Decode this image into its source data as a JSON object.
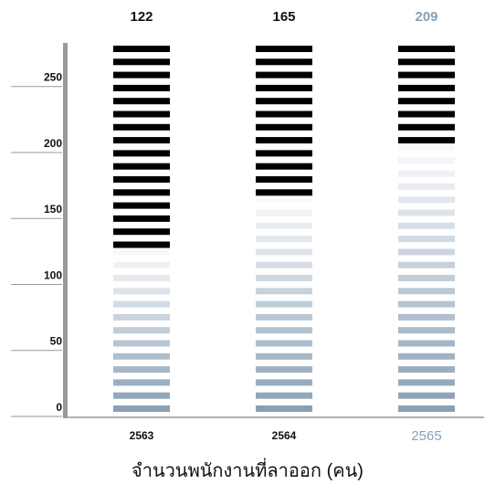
{
  "chart_data": {
    "type": "bar",
    "title": "",
    "xlabel": "จำนวนพนักงานที่ลาออก (คน)",
    "ylabel": "",
    "categories": [
      "2563",
      "2564",
      "2565"
    ],
    "values": [
      122,
      165,
      209
    ],
    "value_labels": [
      "122",
      "165",
      "209"
    ],
    "ylim": [
      0,
      283
    ],
    "yticks": [
      {
        "value": 0,
        "label": "0"
      },
      {
        "value": 50,
        "label": "50"
      },
      {
        "value": 100,
        "label": "100"
      },
      {
        "value": 150,
        "label": "150"
      },
      {
        "value": 200,
        "label": "200"
      },
      {
        "value": 250,
        "label": "250"
      }
    ],
    "highlight_index": 2,
    "grid": false,
    "legend": "none",
    "colors": {
      "filled": "#000000",
      "empty_bottom": "#8aa0b5",
      "empty_top": "#f8f9fb",
      "axis": "#999999",
      "label_default": "#111111",
      "label_highlight": "#8aa0b5"
    }
  }
}
